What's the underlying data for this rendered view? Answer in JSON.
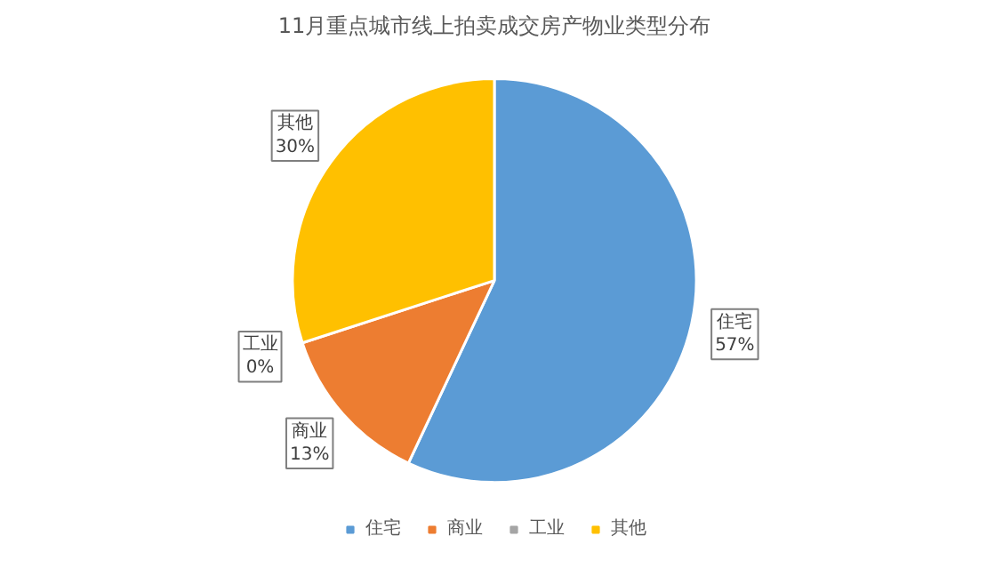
{
  "chart_data": {
    "type": "pie",
    "title": "11月重点城市线上拍卖成交房产物业类型分布",
    "categories": [
      "住宅",
      "商业",
      "工业",
      "其他"
    ],
    "values": [
      57,
      13,
      0,
      30
    ],
    "colors": [
      "#5b9bd5",
      "#ed7d31",
      "#a5a5a5",
      "#ffc000"
    ],
    "value_labels": [
      "57%",
      "13%",
      "0%",
      "30%"
    ],
    "legend": "bottom"
  }
}
